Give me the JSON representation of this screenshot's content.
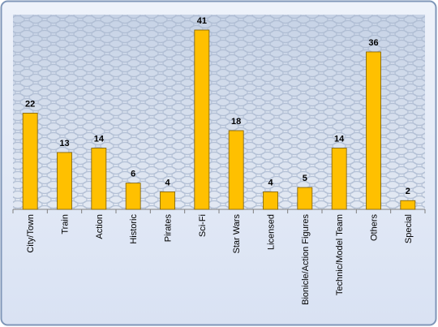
{
  "chart_data": {
    "type": "bar",
    "categories": [
      "City/Town",
      "Train",
      "Action",
      "Historic",
      "Pirates",
      "Sci-Fi",
      "Star Wars",
      "Licensed",
      "Bionicle/Action Figures",
      "Technic/Model Team",
      "Others",
      "Special"
    ],
    "values": [
      22,
      13,
      14,
      6,
      4,
      41,
      18,
      4,
      5,
      14,
      36,
      2
    ],
    "color": "#ffc000"
  }
}
